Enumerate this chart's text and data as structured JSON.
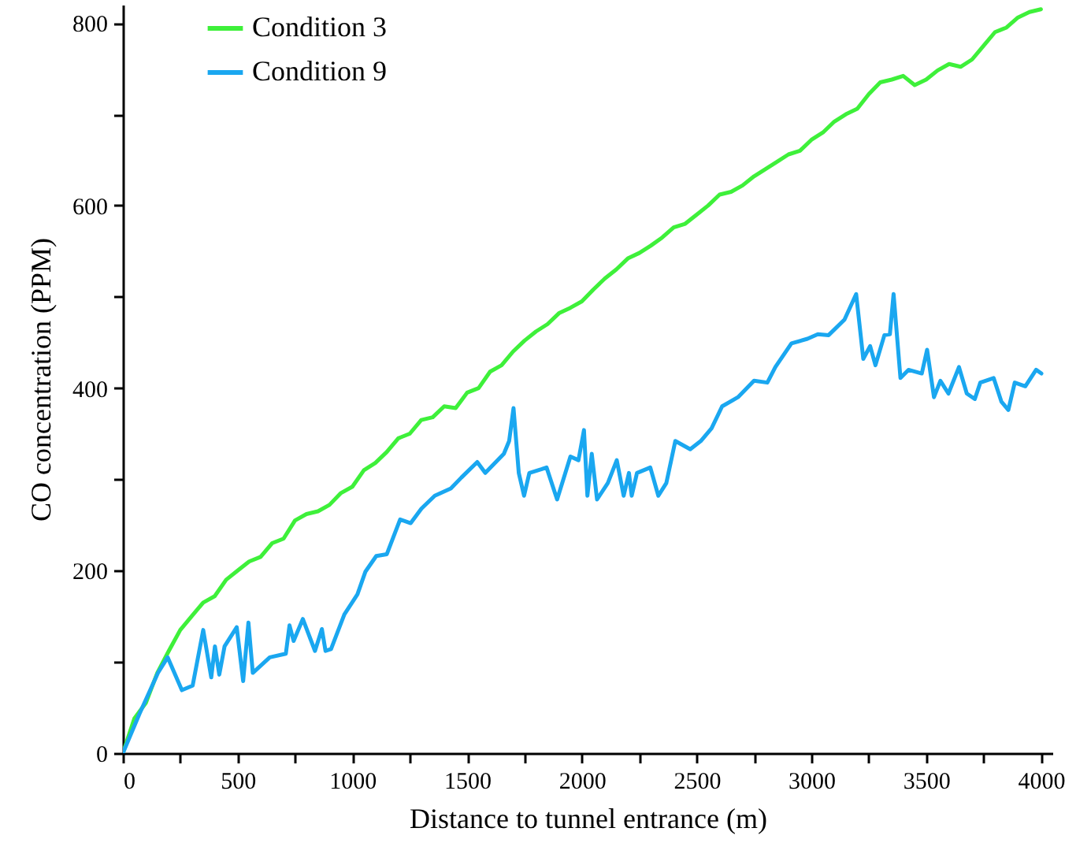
{
  "chart_data": {
    "type": "line",
    "xlabel": "Distance to tunnel entrance (m)",
    "ylabel": "CO concentration (PPM)",
    "xlim": [
      0,
      4050
    ],
    "ylim": [
      0,
      820
    ],
    "xticks": [
      0,
      {
        "value": 250,
        "label": null
      },
      500,
      {
        "value": 750,
        "label": null
      },
      1000,
      {
        "value": 1250,
        "label": null
      },
      1500,
      {
        "value": 1750,
        "label": null
      },
      2000,
      {
        "value": 2250,
        "label": null
      },
      2500,
      {
        "value": 2750,
        "label": null
      },
      3000,
      {
        "value": 3250,
        "label": null
      },
      3500,
      {
        "value": 3750,
        "label": null
      },
      4000
    ],
    "yticks": [
      0,
      {
        "value": 100,
        "label": null
      },
      200,
      {
        "value": 300,
        "label": null
      },
      400,
      {
        "value": 500,
        "label": null
      },
      600,
      {
        "value": 700,
        "label": null
      },
      800
    ],
    "grid": false,
    "legend": "top left",
    "marker": "none",
    "line_style": "solid",
    "series": [
      {
        "name": "Condition 3",
        "color": "#3ef03a",
        "x": [
          0,
          50,
          100,
          150,
          200,
          250,
          300,
          350,
          400,
          450,
          500,
          550,
          600,
          650,
          700,
          750,
          800,
          850,
          900,
          950,
          1000,
          1050,
          1100,
          1150,
          1200,
          1250,
          1300,
          1350,
          1400,
          1450,
          1500,
          1550,
          1600,
          1650,
          1700,
          1750,
          1800,
          1850,
          1900,
          1950,
          2000,
          2050,
          2100,
          2150,
          2200,
          2250,
          2300,
          2350,
          2400,
          2450,
          2500,
          2550,
          2600,
          2650,
          2700,
          2750,
          2800,
          2850,
          2900,
          2950,
          3000,
          3050,
          3100,
          3150,
          3200,
          3250,
          3300,
          3350,
          3400,
          3450,
          3500,
          3550,
          3600,
          3650,
          3700,
          3750,
          3800,
          3850,
          3900,
          3950,
          4000
        ],
        "values": [
          0,
          38,
          55,
          88,
          112,
          135,
          150,
          165,
          172,
          190,
          200,
          210,
          215,
          230,
          235,
          255,
          262,
          265,
          272,
          285,
          292,
          310,
          318,
          330,
          345,
          350,
          365,
          368,
          380,
          378,
          395,
          400,
          418,
          425,
          440,
          452,
          462,
          470,
          482,
          488,
          495,
          508,
          520,
          530,
          542,
          548,
          556,
          565,
          576,
          580,
          590,
          600,
          612,
          615,
          622,
          632,
          640,
          648,
          656,
          660,
          672,
          680,
          692,
          700,
          706,
          722,
          735,
          738,
          742,
          732,
          738,
          748,
          755,
          752,
          760,
          775,
          790,
          795,
          806,
          812,
          815
        ]
      },
      {
        "name": "Condition 9",
        "color": "#1aa7f0",
        "x": [
          0,
          72,
          153,
          195,
          257,
          304,
          350,
          385,
          401,
          420,
          443,
          496,
          524,
          547,
          566,
          640,
          710,
          726,
          744,
          784,
          837,
          867,
          883,
          907,
          965,
          1022,
          1057,
          1104,
          1150,
          1208,
          1254,
          1301,
          1359,
          1429,
          1475,
          1544,
          1579,
          1660,
          1683,
          1702,
          1725,
          1748,
          1771,
          1823,
          1846,
          1892,
          1950,
          1985,
          2009,
          2024,
          2043,
          2066,
          2113,
          2152,
          2182,
          2205,
          2217,
          2240,
          2298,
          2333,
          2368,
          2407,
          2472,
          2518,
          2565,
          2611,
          2680,
          2750,
          2808,
          2843,
          2913,
          2983,
          3028,
          3075,
          3144,
          3195,
          3226,
          3256,
          3279,
          3318,
          3342,
          3358,
          3388,
          3423,
          3481,
          3504,
          3534,
          3562,
          3597,
          3643,
          3677,
          3712,
          3736,
          3794,
          3828,
          3858,
          3886,
          3932,
          3979,
          4002
        ],
        "values": [
          0,
          43,
          88,
          105,
          69,
          74,
          135,
          83,
          117,
          86,
          117,
          138,
          79,
          143,
          88,
          105,
          109,
          140,
          123,
          147,
          112,
          136,
          112,
          114,
          152,
          174,
          199,
          216,
          218,
          256,
          252,
          268,
          282,
          290,
          302,
          319,
          307,
          328,
          342,
          378,
          307,
          282,
          307,
          311,
          313,
          278,
          325,
          321,
          354,
          282,
          328,
          278,
          296,
          321,
          282,
          307,
          282,
          307,
          313,
          282,
          296,
          342,
          333,
          342,
          356,
          380,
          390,
          408,
          406,
          423,
          449,
          454,
          459,
          458,
          475,
          503,
          432,
          446,
          425,
          458,
          459,
          503,
          411,
          420,
          416,
          442,
          390,
          408,
          394,
          423,
          394,
          388,
          406,
          411,
          385,
          376,
          406,
          402,
          420,
          416
        ]
      }
    ]
  }
}
